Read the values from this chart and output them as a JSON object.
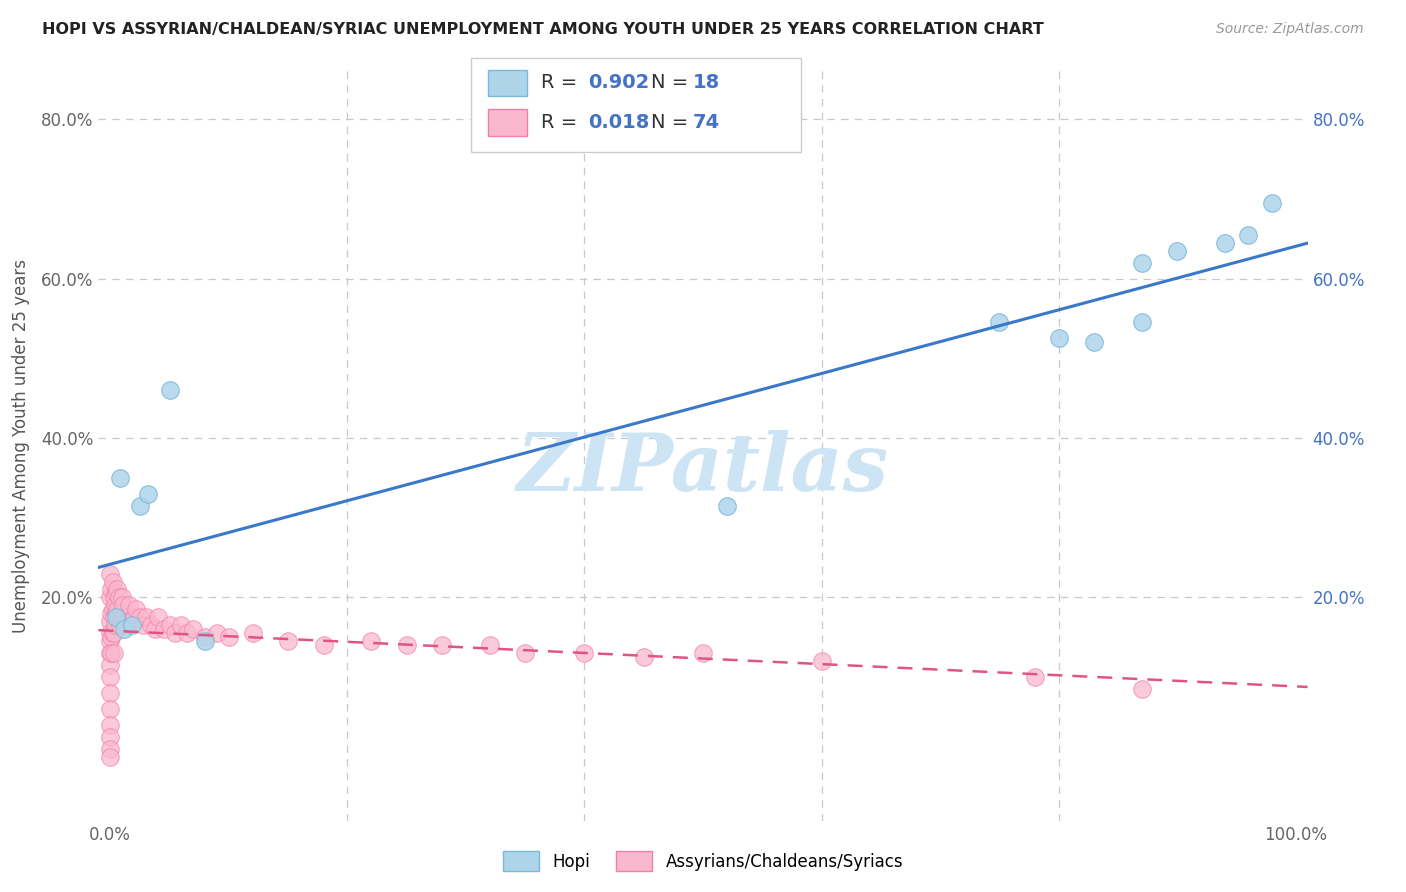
{
  "title": "HOPI VS ASSYRIAN/CHALDEAN/SYRIAC UNEMPLOYMENT AMONG YOUTH UNDER 25 YEARS CORRELATION CHART",
  "source": "Source: ZipAtlas.com",
  "ylabel": "Unemployment Among Youth under 25 years",
  "hopi_color": "#7ab8d9",
  "hopi_color_fill": "#aed4ea",
  "acs_color": "#f47faa",
  "acs_color_fill": "#f9b8ce",
  "hopi_R": 0.902,
  "hopi_N": 18,
  "acs_R": 0.018,
  "acs_N": 74,
  "hopi_x": [
    0.005,
    0.008,
    0.012,
    0.018,
    0.025,
    0.032,
    0.05,
    0.08,
    0.52,
    0.75,
    0.8,
    0.83,
    0.87,
    0.87,
    0.9,
    0.94,
    0.96,
    0.98
  ],
  "hopi_y": [
    0.175,
    0.35,
    0.16,
    0.165,
    0.315,
    0.33,
    0.46,
    0.145,
    0.315,
    0.545,
    0.525,
    0.52,
    0.62,
    0.545,
    0.635,
    0.645,
    0.655,
    0.695
  ],
  "acs_x": [
    0.0,
    0.0,
    0.0,
    0.0,
    0.0,
    0.0,
    0.0,
    0.0,
    0.0,
    0.0,
    0.0,
    0.0,
    0.0,
    0.0,
    0.001,
    0.001,
    0.001,
    0.001,
    0.002,
    0.002,
    0.002,
    0.003,
    0.003,
    0.003,
    0.003,
    0.004,
    0.004,
    0.005,
    0.005,
    0.006,
    0.006,
    0.007,
    0.007,
    0.008,
    0.009,
    0.01,
    0.01,
    0.011,
    0.012,
    0.013,
    0.015,
    0.016,
    0.018,
    0.02,
    0.022,
    0.025,
    0.028,
    0.03,
    0.034,
    0.038,
    0.04,
    0.045,
    0.05,
    0.055,
    0.06,
    0.065,
    0.07,
    0.08,
    0.09,
    0.1,
    0.12,
    0.15,
    0.18,
    0.22,
    0.25,
    0.28,
    0.32,
    0.35,
    0.4,
    0.45,
    0.5,
    0.6,
    0.78,
    0.87
  ],
  "acs_y": [
    0.23,
    0.2,
    0.17,
    0.155,
    0.145,
    0.13,
    0.115,
    0.1,
    0.08,
    0.06,
    0.04,
    0.025,
    0.01,
    0.0,
    0.21,
    0.18,
    0.15,
    0.13,
    0.22,
    0.185,
    0.155,
    0.2,
    0.175,
    0.155,
    0.13,
    0.19,
    0.165,
    0.205,
    0.18,
    0.21,
    0.185,
    0.2,
    0.175,
    0.165,
    0.18,
    0.2,
    0.175,
    0.19,
    0.175,
    0.165,
    0.175,
    0.19,
    0.17,
    0.175,
    0.185,
    0.175,
    0.165,
    0.175,
    0.165,
    0.16,
    0.175,
    0.16,
    0.165,
    0.155,
    0.165,
    0.155,
    0.16,
    0.15,
    0.155,
    0.15,
    0.155,
    0.145,
    0.14,
    0.145,
    0.14,
    0.14,
    0.14,
    0.13,
    0.13,
    0.125,
    0.13,
    0.12,
    0.1,
    0.085
  ],
  "xlim": [
    -0.01,
    1.01
  ],
  "ylim": [
    -0.08,
    0.86
  ],
  "xticks": [
    0.0,
    0.2,
    0.4,
    0.6,
    0.8,
    1.0
  ],
  "xticklabels": [
    "0.0%",
    "",
    "",
    "",
    "",
    "100.0%"
  ],
  "yticks": [
    0.2,
    0.4,
    0.6,
    0.8
  ],
  "yticklabels": [
    "20.0%",
    "40.0%",
    "60.0%",
    "80.0%"
  ],
  "grid_color": "#c8c8c8",
  "background_color": "#ffffff",
  "watermark_text": "ZIPatlas",
  "watermark_color": "#cce4f4",
  "hopi_line_color": "#3a78c9",
  "acs_line_color": "#e05580",
  "right_tick_color": "#4472c4"
}
